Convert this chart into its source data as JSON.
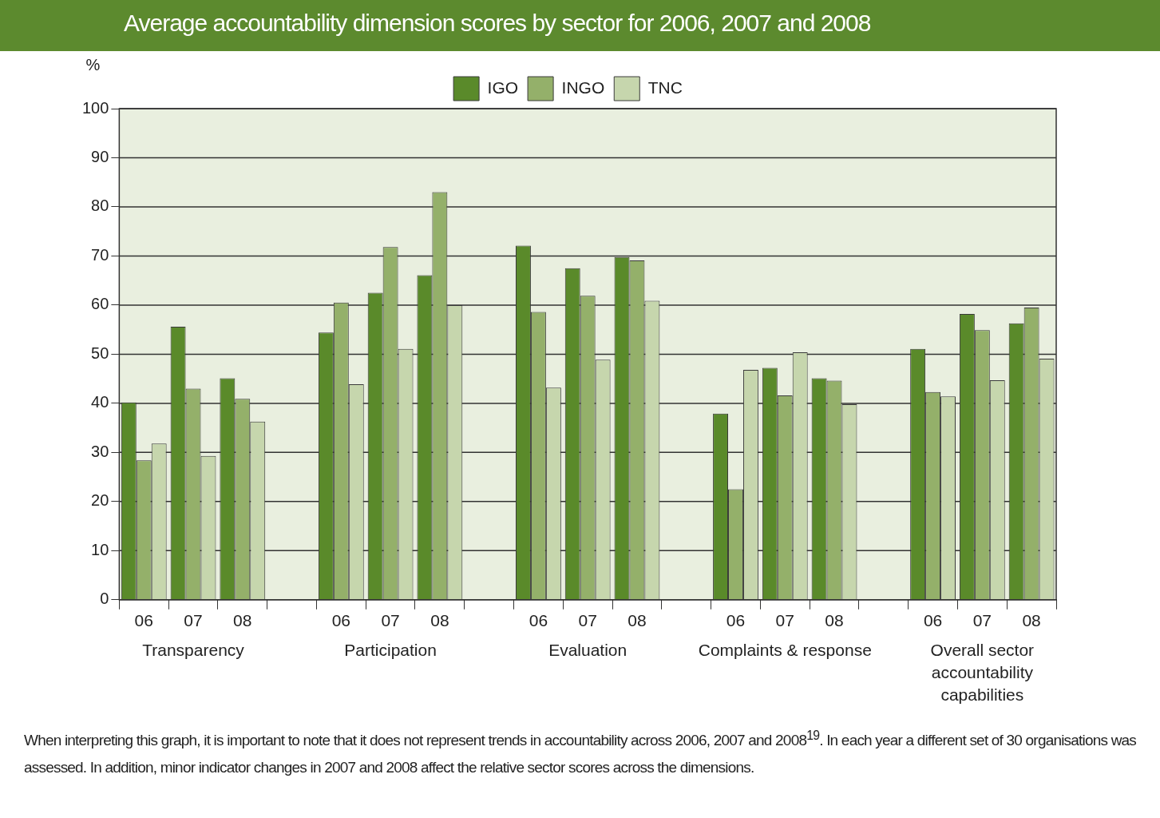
{
  "chart_data": {
    "type": "bar",
    "title": "Average accountability dimension scores by sector for 2006, 2007 and 2008",
    "ylabel": "%",
    "categories": [
      "06",
      "07",
      "08",
      null,
      "06",
      "07",
      "08",
      null,
      "06",
      "07",
      "08",
      null,
      "06",
      "07",
      "08",
      null,
      "06",
      "07",
      "08"
    ],
    "series": [
      {
        "name": "IGO",
        "color": "#5a8a2a",
        "values": [
          40.2,
          55.6,
          45.1,
          null,
          54.4,
          62.5,
          66.1,
          null,
          72.1,
          67.5,
          69.8,
          null,
          37.9,
          47.2,
          45.1,
          null,
          51.1,
          58.2,
          56.3
        ]
      },
      {
        "name": "INGO",
        "color": "#94b06a",
        "values": [
          28.4,
          43,
          40.9,
          null,
          60.5,
          71.8,
          83,
          null,
          58.6,
          61.9,
          69.1,
          null,
          22.5,
          41.6,
          44.6,
          null,
          42.3,
          54.9,
          59.5
        ]
      },
      {
        "name": "TNC",
        "color": "#c6d6ad",
        "values": [
          31.8,
          29.3,
          36.3,
          null,
          43.9,
          51.1,
          60,
          null,
          43.2,
          48.9,
          60.9,
          null,
          46.8,
          50.4,
          39.8,
          null,
          41.4,
          44.7,
          49.1
        ]
      }
    ],
    "ylim": [
      0,
      100
    ],
    "yticks": [
      0,
      10,
      20,
      30,
      40,
      50,
      60,
      70,
      80,
      90,
      100
    ],
    "grid": "y",
    "legend": "top",
    "annotations": [
      "Transparency",
      "Participation",
      "Evaluation",
      "Complaints & response",
      "Overall sector accountability capabilities",
      "When interpreting this graph, it is important to note that it does not represent trends in accountability across 2006, 2007 and 2008$^{19}$. In each year a different set of 30 organisations was assessed. In addition, minor indicator changes in 2007 and 2008 affect the relative sector scores across the dimensions."
    ]
  }
}
